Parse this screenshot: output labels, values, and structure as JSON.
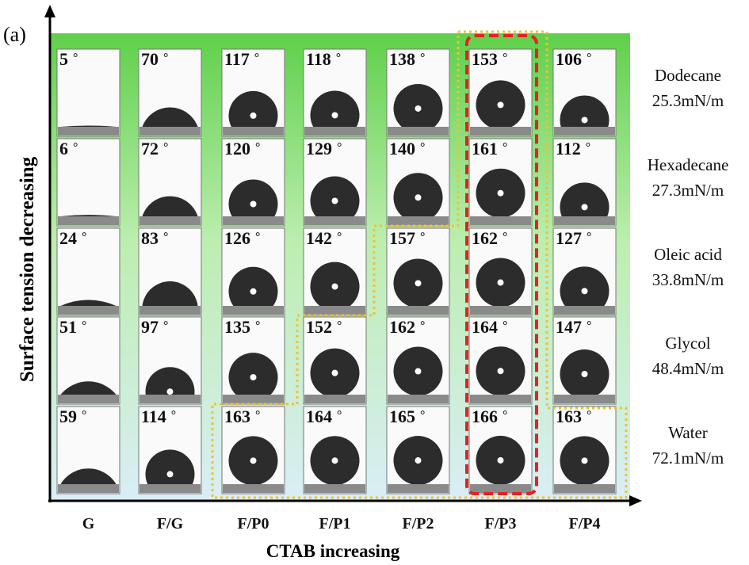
{
  "panel_label": "(a)",
  "y_axis_label": "Surface tension decreasing",
  "x_axis_label": "CTAB increasing",
  "angle_unit": "°",
  "samples": [
    "G",
    "F/G",
    "F/P0",
    "F/P1",
    "F/P2",
    "F/P3",
    "F/P4"
  ],
  "liquids": [
    {
      "name": "Dodecane",
      "surface_tension": "25.3mN/m",
      "angles": [
        5,
        70,
        117,
        118,
        138,
        153,
        106
      ]
    },
    {
      "name": "Hexadecane",
      "surface_tension": "27.3mN/m",
      "angles": [
        6,
        72,
        120,
        129,
        140,
        161,
        112
      ]
    },
    {
      "name": "Oleic acid",
      "surface_tension": "33.8mN/m",
      "angles": [
        24,
        83,
        126,
        142,
        157,
        162,
        127
      ]
    },
    {
      "name": "Glycol",
      "surface_tension": "48.4mN/m",
      "angles": [
        51,
        97,
        135,
        152,
        162,
        164,
        147
      ]
    },
    {
      "name": "Water",
      "surface_tension": "72.1mN/m",
      "angles": [
        59,
        114,
        163,
        164,
        165,
        166,
        163
      ]
    }
  ]
}
